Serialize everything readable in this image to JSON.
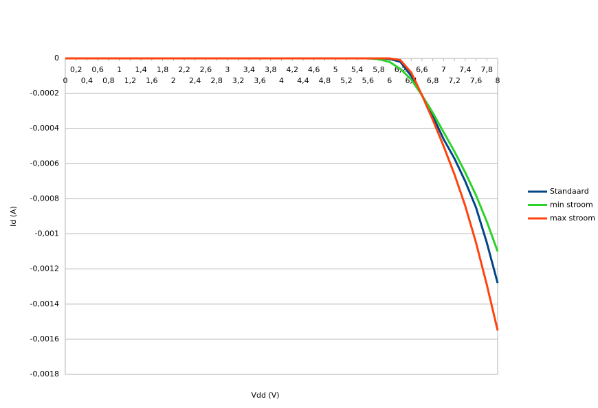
{
  "chart_data": {
    "type": "line",
    "x_label": "Vdd (V)",
    "y_label": "Id (A)",
    "x": [
      0,
      0.2,
      0.4,
      0.6,
      0.8,
      1,
      1.2,
      1.4,
      1.6,
      1.8,
      2,
      2.2,
      2.4,
      2.6,
      2.8,
      3,
      3.2,
      3.4,
      3.6,
      3.8,
      4,
      4.2,
      4.4,
      4.6,
      4.8,
      5,
      5.2,
      5.4,
      5.6,
      5.8,
      6,
      6.2,
      6.4,
      6.6,
      6.8,
      7,
      7.2,
      7.4,
      7.6,
      7.8,
      8
    ],
    "series": [
      {
        "name": "Standaard",
        "color": "#004586",
        "values": [
          0,
          0,
          0,
          0,
          0,
          0,
          0,
          0,
          0,
          0,
          0,
          0,
          0,
          0,
          0,
          0,
          0,
          0,
          0,
          0,
          0,
          0,
          0,
          0,
          0,
          0,
          0,
          0,
          0,
          0,
          -3e-06,
          -2e-05,
          -0.0001,
          -0.00021,
          -0.00033,
          -0.00046,
          -0.00057,
          -0.0007,
          -0.00085,
          -0.00105,
          -0.00128
        ]
      },
      {
        "name": "min stroom",
        "color": "#2ad22a",
        "values": [
          0,
          0,
          0,
          0,
          0,
          0,
          0,
          0,
          0,
          0,
          0,
          0,
          0,
          0,
          0,
          0,
          0,
          0,
          0,
          0,
          0,
          0,
          0,
          0,
          0,
          0,
          0,
          0,
          0,
          -5e-06,
          -2e-05,
          -6e-05,
          -0.00012,
          -0.00021,
          -0.00031,
          -0.00042,
          -0.00053,
          -0.00065,
          -0.00078,
          -0.00093,
          -0.0011
        ]
      },
      {
        "name": "max stroom",
        "color": "#ff420e",
        "values": [
          0,
          0,
          0,
          0,
          0,
          0,
          0,
          0,
          0,
          0,
          0,
          0,
          0,
          0,
          0,
          0,
          0,
          0,
          0,
          0,
          0,
          0,
          0,
          0,
          0,
          0,
          0,
          0,
          0,
          0,
          0,
          -1e-05,
          -8e-05,
          -0.00021,
          -0.00035,
          -0.0005,
          -0.00066,
          -0.00084,
          -0.00105,
          -0.00129,
          -0.00155
        ]
      }
    ],
    "xlim": [
      0,
      8
    ],
    "xticks": [
      0,
      {
        "value": 0.2,
        "label": "0,2"
      },
      {
        "value": 0.4,
        "label": "0,4"
      },
      {
        "value": 0.6,
        "label": "0,6"
      },
      {
        "value": 0.8,
        "label": "0,8"
      },
      1,
      {
        "value": 1.2,
        "label": "1,2"
      },
      {
        "value": 1.4,
        "label": "1,4"
      },
      {
        "value": 1.6,
        "label": "1,6"
      },
      {
        "value": 1.8,
        "label": "1,8"
      },
      2,
      {
        "value": 2.2,
        "label": "2,2"
      },
      {
        "value": 2.4,
        "label": "2,4"
      },
      {
        "value": 2.6,
        "label": "2,6"
      },
      {
        "value": 2.8,
        "label": "2,8"
      },
      3,
      {
        "value": 3.2,
        "label": "3,2"
      },
      {
        "value": 3.4,
        "label": "3,4"
      },
      {
        "value": 3.6,
        "label": "3,6"
      },
      {
        "value": 3.8,
        "label": "3,8"
      },
      4,
      {
        "value": 4.2,
        "label": "4,2"
      },
      {
        "value": 4.4,
        "label": "4,4"
      },
      {
        "value": 4.6,
        "label": "4,6"
      },
      {
        "value": 4.8,
        "label": "4,8"
      },
      5,
      {
        "value": 5.2,
        "label": "5,2"
      },
      {
        "value": 5.4,
        "label": "5,4"
      },
      {
        "value": 5.6,
        "label": "5,6"
      },
      {
        "value": 5.8,
        "label": "5,8"
      },
      6,
      {
        "value": 6.2,
        "label": "6,2"
      },
      {
        "value": 6.4,
        "label": "6,4"
      },
      {
        "value": 6.6,
        "label": "6,6"
      },
      {
        "value": 6.8,
        "label": "6,8"
      },
      7,
      {
        "value": 7.2,
        "label": "7,2"
      },
      {
        "value": 7.4,
        "label": "7,4"
      },
      {
        "value": 7.6,
        "label": "7,6"
      },
      {
        "value": 7.8,
        "label": "7,8"
      },
      8
    ],
    "ylim": [
      -0.0018,
      0
    ],
    "yticks": [
      0,
      {
        "value": -0.0002,
        "label": "-0,0002"
      },
      {
        "value": -0.0004,
        "label": "-0,0004"
      },
      {
        "value": -0.0006,
        "label": "-0,0006"
      },
      {
        "value": -0.0008,
        "label": "-0,0008"
      },
      {
        "value": -0.001,
        "label": "-0,001"
      },
      {
        "value": -0.0012,
        "label": "-0,0012"
      },
      {
        "value": -0.0014,
        "label": "-0,0014"
      },
      {
        "value": -0.0016,
        "label": "-0,0016"
      },
      {
        "value": -0.0018,
        "label": "-0,0018"
      }
    ],
    "grid": true,
    "legend": "right"
  }
}
